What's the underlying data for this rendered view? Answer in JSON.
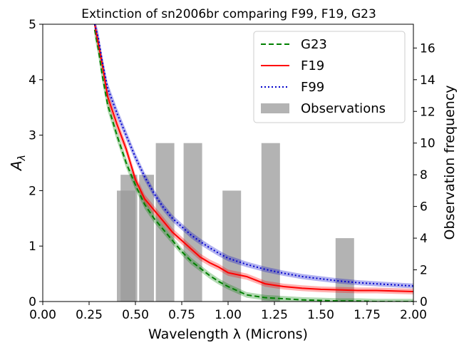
{
  "chart_data": {
    "type": "line",
    "title": "Extinction of sn2006br comparing F99, F19, G23",
    "xlabel": "Wavelength λ (Microns)",
    "ylabel_main": "A",
    "ylabel_sub": "λ",
    "y2label": "Observation frequency",
    "xlim": [
      0,
      2.0
    ],
    "ylim": [
      0,
      5
    ],
    "y2lim": [
      0,
      17.5
    ],
    "xticks": [
      "0.00",
      "0.25",
      "0.50",
      "0.75",
      "1.00",
      "1.25",
      "1.50",
      "1.75",
      "2.00"
    ],
    "xtick_values": [
      0,
      0.25,
      0.5,
      0.75,
      1.0,
      1.25,
      1.5,
      1.75,
      2.0
    ],
    "yticks": [
      "0",
      "1",
      "2",
      "3",
      "4",
      "5"
    ],
    "ytick_values": [
      0,
      1,
      2,
      3,
      4,
      5
    ],
    "y2ticks": [
      "0",
      "2",
      "4",
      "6",
      "8",
      "10",
      "12",
      "14",
      "16"
    ],
    "y2tick_values": [
      0,
      2,
      4,
      6,
      8,
      10,
      12,
      14,
      16
    ],
    "legend_position": "top-right",
    "series": [
      {
        "name": "G23",
        "color": "#008000",
        "style": "dashed",
        "x": [
          0.28,
          0.3,
          0.32,
          0.35,
          0.4,
          0.45,
          0.5,
          0.55,
          0.6,
          0.65,
          0.7,
          0.75,
          0.8,
          0.85,
          0.9,
          0.95,
          1.0,
          1.1,
          1.2,
          1.3,
          1.4,
          1.5,
          1.6,
          1.7,
          1.8,
          1.9,
          2.0
        ],
        "y": [
          4.9,
          4.55,
          4.1,
          3.55,
          3.0,
          2.5,
          2.1,
          1.75,
          1.5,
          1.3,
          1.1,
          0.9,
          0.73,
          0.6,
          0.47,
          0.36,
          0.27,
          0.12,
          0.07,
          0.05,
          0.03,
          0.02,
          0.01,
          0.01,
          0.0,
          0.0,
          0.0
        ],
        "band": 0.12
      },
      {
        "name": "F19",
        "color": "#ff0000",
        "style": "solid",
        "x": [
          0.28,
          0.3,
          0.32,
          0.35,
          0.4,
          0.45,
          0.5,
          0.55,
          0.6,
          0.65,
          0.7,
          0.75,
          0.8,
          0.85,
          0.9,
          0.95,
          1.0,
          1.1,
          1.2,
          1.3,
          1.4,
          1.5,
          1.6,
          1.7,
          1.8,
          1.9,
          2.0
        ],
        "y": [
          5.0,
          4.65,
          4.3,
          3.7,
          3.2,
          2.75,
          2.2,
          1.85,
          1.65,
          1.45,
          1.25,
          1.1,
          0.95,
          0.8,
          0.7,
          0.62,
          0.52,
          0.45,
          0.32,
          0.27,
          0.24,
          0.22,
          0.21,
          0.2,
          0.2,
          0.19,
          0.18
        ],
        "band": 0.12
      },
      {
        "name": "F99",
        "color": "#0000cc",
        "style": "dotted",
        "x": [
          0.28,
          0.3,
          0.32,
          0.35,
          0.4,
          0.45,
          0.5,
          0.55,
          0.6,
          0.65,
          0.7,
          0.75,
          0.8,
          0.85,
          0.9,
          0.95,
          1.0,
          1.1,
          1.2,
          1.3,
          1.4,
          1.5,
          1.6,
          1.7,
          1.8,
          1.9,
          2.0
        ],
        "y": [
          5.0,
          4.75,
          4.35,
          3.85,
          3.4,
          3.0,
          2.6,
          2.25,
          1.95,
          1.7,
          1.5,
          1.35,
          1.2,
          1.08,
          0.97,
          0.87,
          0.78,
          0.67,
          0.58,
          0.51,
          0.45,
          0.41,
          0.37,
          0.34,
          0.32,
          0.3,
          0.28
        ],
        "band": 0.1
      }
    ],
    "observations": {
      "name": "Observations",
      "color": "#999999",
      "bars": [
        {
          "x0": 0.4,
          "x1": 0.5,
          "count": 7
        },
        {
          "x0": 0.42,
          "x1": 0.51,
          "count": 8
        },
        {
          "x0": 0.52,
          "x1": 0.6,
          "count": 8
        },
        {
          "x0": 0.61,
          "x1": 0.71,
          "count": 10
        },
        {
          "x0": 0.76,
          "x1": 0.86,
          "count": 10
        },
        {
          "x0": 0.97,
          "x1": 1.07,
          "count": 7
        },
        {
          "x0": 1.18,
          "x1": 1.28,
          "count": 10
        },
        {
          "x0": 1.58,
          "x1": 1.68,
          "count": 4
        }
      ]
    }
  }
}
